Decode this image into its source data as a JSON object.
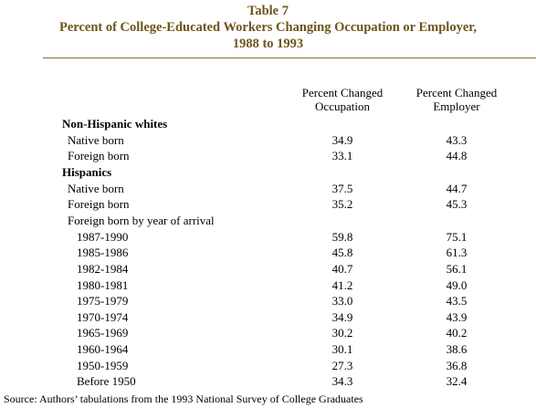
{
  "header": {
    "title": [
      "Table 7",
      "Percent of College-Educated Workers Changing Occupation or Employer,",
      "1988 to 1993"
    ]
  },
  "table": {
    "columns": [
      [
        "Percent Changed",
        "Occupation"
      ],
      [
        "Percent Changed",
        "Employer"
      ]
    ],
    "sections": [
      {
        "title": "Non-Hispanic whites",
        "rows": [
          {
            "label": "Native born",
            "values": [
              "34.9",
              "43.3"
            ]
          },
          {
            "label": "Foreign born",
            "values": [
              "33.1",
              "44.8"
            ]
          }
        ]
      },
      {
        "title": "Hispanics",
        "rows": [
          {
            "label": "Native born",
            "values": [
              "37.5",
              "44.7"
            ]
          },
          {
            "label": "Foreign born",
            "values": [
              "35.2",
              "45.3"
            ]
          },
          {
            "label": "Foreign born by year of arrival",
            "rows": [
              {
                "label": "1987-1990",
                "values": [
                  "59.8",
                  "75.1"
                ]
              },
              {
                "label": "1985-1986",
                "values": [
                  "45.8",
                  "61.3"
                ]
              },
              {
                "label": "1982-1984",
                "values": [
                  "40.7",
                  "56.1"
                ]
              },
              {
                "label": "1980-1981",
                "values": [
                  "41.2",
                  "49.0"
                ]
              },
              {
                "label": "1975-1979",
                "values": [
                  "33.0",
                  "43.5"
                ]
              },
              {
                "label": "1970-1974",
                "values": [
                  "34.9",
                  "43.9"
                ]
              },
              {
                "label": "1965-1969",
                "values": [
                  "30.2",
                  "40.2"
                ]
              },
              {
                "label": "1960-1964",
                "values": [
                  "30.1",
                  "38.6"
                ]
              },
              {
                "label": "1950-1959",
                "values": [
                  "27.3",
                  "36.8"
                ]
              },
              {
                "label": "Before 1950",
                "values": [
                  "34.3",
                  "32.4"
                ]
              }
            ]
          }
        ]
      }
    ]
  },
  "footer": {
    "source": "Source: Authors’ tabulations from the 1993 National Survey of College Graduates"
  }
}
